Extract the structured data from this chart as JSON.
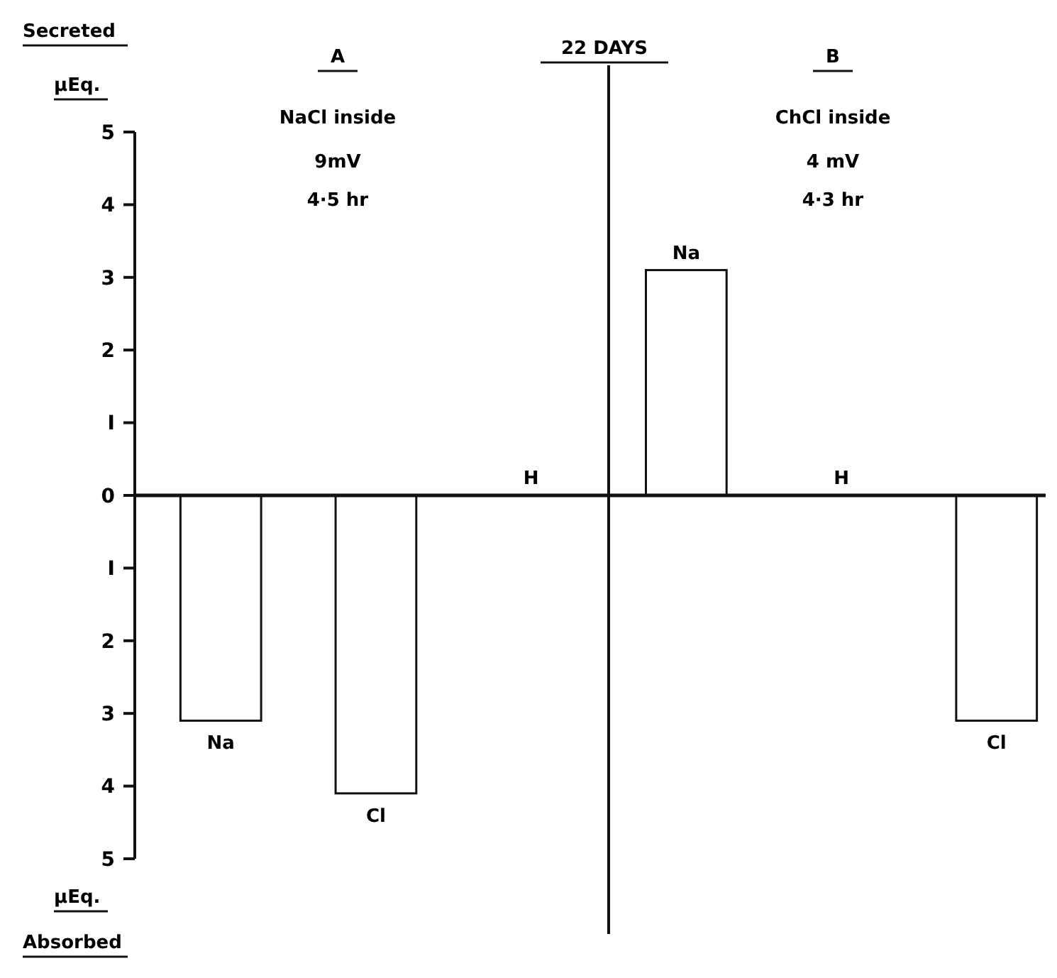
{
  "chart_data": {
    "type": "bar",
    "ylabel": "Secreted",
    "categories": [
      "Na",
      "Cl",
      "H",
      "Na",
      "H",
      "Cl"
    ],
    "values": [
      -3.1,
      -4.1,
      0,
      3.1,
      0,
      -3.1
    ],
    "color": "#ffffff",
    "ylim": [
      -5,
      5
    ],
    "yticks": [
      {
        "value": -5,
        "label": "5"
      },
      {
        "value": -4,
        "label": "4"
      },
      {
        "value": -3,
        "label": "3"
      },
      {
        "value": -2,
        "label": "2"
      },
      {
        "value": -1,
        "label": "I"
      },
      0,
      {
        "value": 1,
        "label": "I"
      },
      2,
      3,
      4,
      5
    ],
    "grid": false,
    "annotations": [
      "μEq.",
      "μEq.",
      "Absorbed",
      "A",
      "NaCl inside",
      "9mV",
      "4·5 hr",
      "22 DAYS",
      "B",
      "ChCl inside",
      "4 mV",
      "4·3 hr"
    ]
  }
}
